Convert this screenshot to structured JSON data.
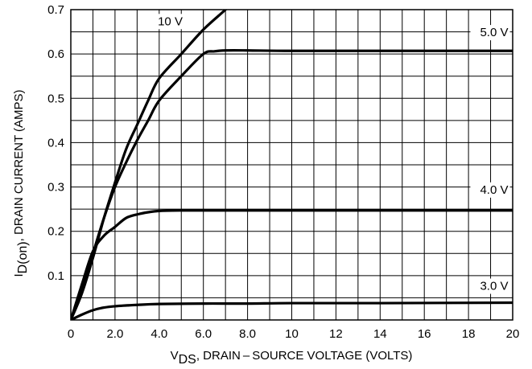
{
  "chart_data": {
    "type": "line",
    "title": "",
    "xlabel": {
      "main": "V",
      "sub": "DS",
      "rest": ", DRAIN – SOURCE VOLTAGE (VOLTS)"
    },
    "ylabel": {
      "main": "I",
      "sub": "D(on)",
      "rest": ", DRAIN CURRENT (AMPS)"
    },
    "xlim": [
      0,
      20
    ],
    "ylim": [
      0,
      0.7
    ],
    "x_ticks": [
      0,
      2,
      4,
      6,
      8,
      10,
      12,
      14,
      16,
      18,
      20
    ],
    "x_tick_labels": [
      "0",
      "2.0",
      "4.0",
      "6.0",
      "8.0",
      "10",
      "12",
      "14",
      "16",
      "18",
      "20"
    ],
    "y_ticks": [
      0.1,
      0.2,
      0.3,
      0.4,
      0.5,
      0.6,
      0.7
    ],
    "y_tick_labels": [
      "0.1",
      "0.2",
      "0.3",
      "0.4",
      "0.5",
      "0.6",
      "0.7"
    ],
    "grid": {
      "x_minor_step": 1,
      "y_step": 0.05
    },
    "series": [
      {
        "name": "10 V",
        "x": [
          0,
          0.5,
          1,
          1.5,
          2,
          2.5,
          3,
          3.5,
          4,
          5,
          6,
          7,
          7.5
        ],
        "y": [
          0,
          0.06,
          0.14,
          0.23,
          0.31,
          0.385,
          0.44,
          0.495,
          0.545,
          0.6,
          0.655,
          0.7,
          0.725
        ]
      },
      {
        "name": "5.0 V",
        "x": [
          0,
          0.5,
          1,
          1.5,
          2,
          2.5,
          3,
          3.5,
          4,
          5,
          6,
          6.5,
          7,
          8,
          10,
          14,
          20
        ],
        "y": [
          0,
          0.07,
          0.15,
          0.23,
          0.3,
          0.355,
          0.405,
          0.45,
          0.495,
          0.55,
          0.6,
          0.606,
          0.608,
          0.608,
          0.607,
          0.607,
          0.607
        ]
      },
      {
        "name": "4.0 V",
        "x": [
          0,
          0.5,
          1,
          1.5,
          2,
          2.5,
          3,
          3.5,
          4,
          5,
          6,
          8,
          10,
          14,
          20
        ],
        "y": [
          0,
          0.08,
          0.155,
          0.19,
          0.21,
          0.23,
          0.238,
          0.243,
          0.246,
          0.247,
          0.247,
          0.247,
          0.247,
          0.247,
          0.247
        ]
      },
      {
        "name": "3.0 V",
        "x": [
          0,
          0.5,
          1,
          1.5,
          2,
          3,
          4,
          6,
          8,
          10,
          14,
          20
        ],
        "y": [
          0,
          0.012,
          0.022,
          0.028,
          0.031,
          0.034,
          0.036,
          0.037,
          0.037,
          0.038,
          0.038,
          0.039
        ]
      }
    ],
    "curve_labels": [
      {
        "text": "10 V",
        "x": 4.5,
        "y": 0.665,
        "anchor": "middle"
      },
      {
        "text": "5.0 V",
        "x": 19.8,
        "y": 0.64,
        "anchor": "end"
      },
      {
        "text": "4.0 V",
        "x": 19.8,
        "y": 0.285,
        "anchor": "end"
      },
      {
        "text": "3.0 V",
        "x": 19.8,
        "y": 0.068,
        "anchor": "end"
      }
    ]
  }
}
